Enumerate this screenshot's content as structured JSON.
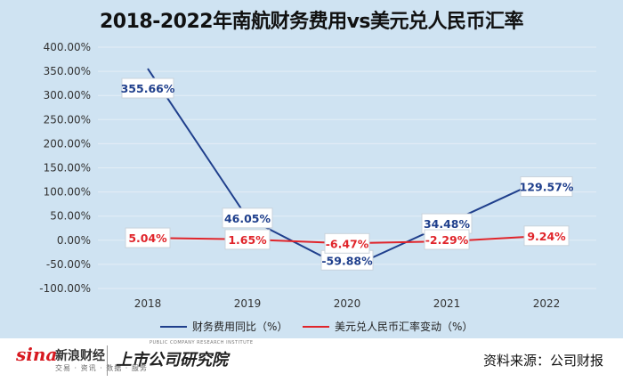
{
  "chart_data": {
    "type": "line",
    "title": "2018-2022年南航财务费用vs美元兑人民币汇率",
    "categories": [
      "2018",
      "2019",
      "2020",
      "2021",
      "2022"
    ],
    "ylim": [
      -100,
      400
    ],
    "yticks": [
      400,
      350,
      300,
      250,
      200,
      150,
      100,
      50,
      0,
      -50,
      -100
    ],
    "ytick_labels": [
      "400.00%",
      "350.00%",
      "300.00%",
      "250.00%",
      "200.00%",
      "150.00%",
      "100.00%",
      "50.00%",
      "0.00%",
      "-50.00%",
      "-100.00%"
    ],
    "grid": true,
    "legend_position": "bottom",
    "series": [
      {
        "name": "财务费用同比（%）",
        "color": "#1f3f8c",
        "values": [
          355.66,
          46.05,
          -59.88,
          34.48,
          129.57
        ],
        "labels": [
          "355.66%",
          "46.05%",
          "-59.88%",
          "34.48%",
          "129.57%"
        ]
      },
      {
        "name": "美元兑人民币汇率变动（%）",
        "color": "#e0252b",
        "values": [
          5.04,
          1.65,
          -6.47,
          -2.29,
          9.24
        ],
        "labels": [
          "5.04%",
          "1.65%",
          "-6.47%",
          "-2.29%",
          "9.24%"
        ]
      }
    ]
  },
  "footer": {
    "sina_logo": "sina",
    "sina_cn": "新浪财经",
    "sina_sub": "交易 · 资讯 · 数据 · 服务",
    "institute_logo": "上市公司研究院",
    "institute_en": "PUBLIC COMPANY RESEARCH INSTITUTE",
    "source": "资料来源：公司财报"
  }
}
